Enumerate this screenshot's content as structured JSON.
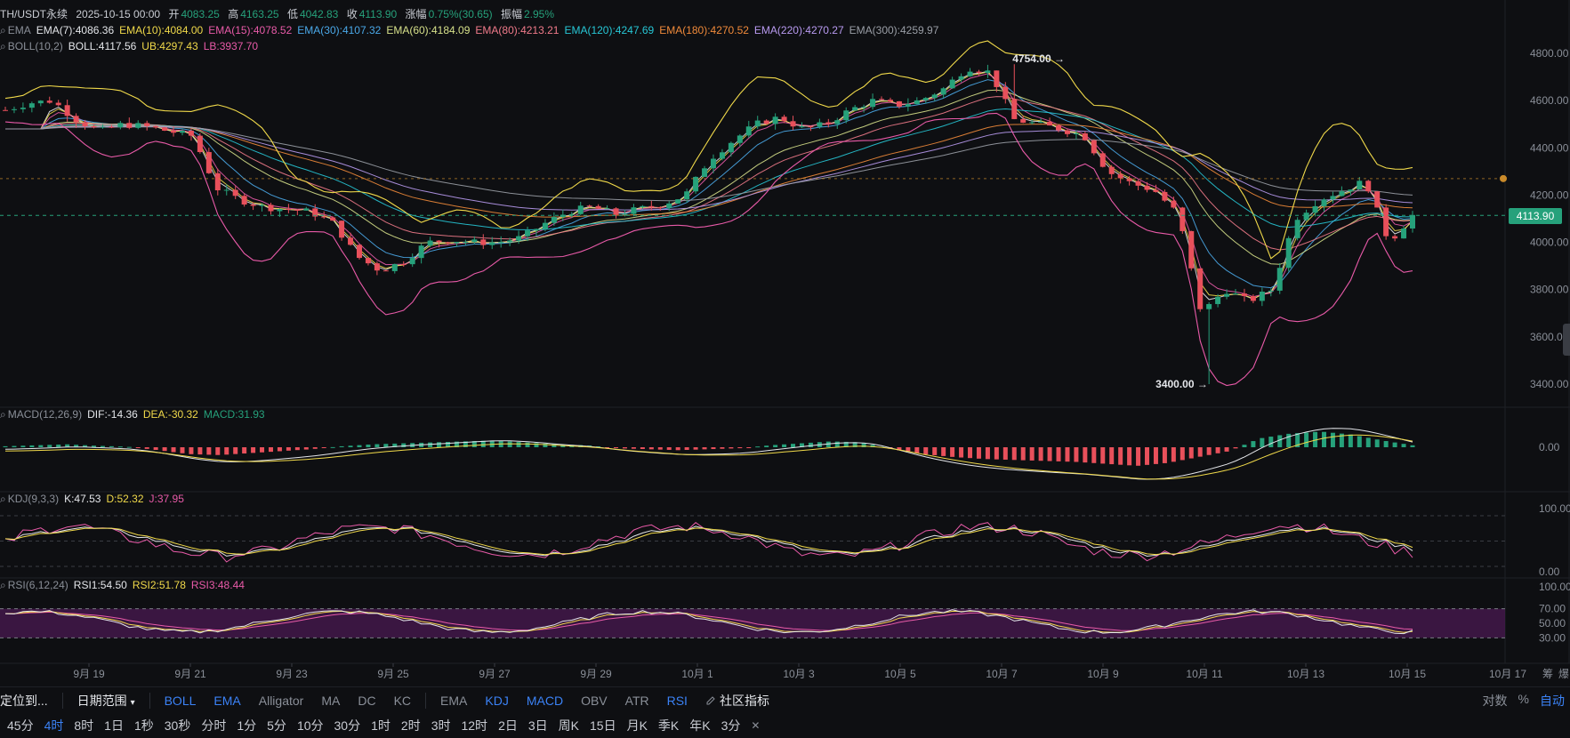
{
  "header": {
    "symbol": "TH/USDT永续",
    "datetime": "2025-10-15 00:00",
    "open_label": "开",
    "open": "4083.25",
    "high_label": "高",
    "high": "4163.25",
    "low_label": "低",
    "low": "4042.83",
    "close_label": "收",
    "close": "4113.90",
    "change_label": "涨幅",
    "change": "0.75%(30.65)",
    "amp_label": "振幅",
    "amp": "2.95%"
  },
  "ema_legend": {
    "name": "EMA",
    "items": [
      {
        "label": "EMA(7):4086.36",
        "color": "#e4e6ea"
      },
      {
        "label": "EMA(10):4084.00",
        "color": "#f0d94a"
      },
      {
        "label": "EMA(15):4078.52",
        "color": "#e85aa8"
      },
      {
        "label": "EMA(30):4107.32",
        "color": "#4aa8e8"
      },
      {
        "label": "EMA(60):4184.09",
        "color": "#d6e08a"
      },
      {
        "label": "EMA(80):4213.21",
        "color": "#f07a8a"
      },
      {
        "label": "EMA(120):4247.69",
        "color": "#27c7d6"
      },
      {
        "label": "EMA(180):4270.52",
        "color": "#f08a3a"
      },
      {
        "label": "EMA(220):4270.27",
        "color": "#b89af0"
      },
      {
        "label": "EMA(300):4259.97",
        "color": "#9a9ea6"
      }
    ]
  },
  "boll_legend": {
    "name": "BOLL(10,2)",
    "items": [
      {
        "label": "BOLL:4117.56",
        "color": "#e4e6ea"
      },
      {
        "label": "UB:4297.43",
        "color": "#f0d94a"
      },
      {
        "label": "LB:3937.70",
        "color": "#e85aa8"
      }
    ]
  },
  "macd_legend": {
    "name": "MACD(12,26,9)",
    "items": [
      {
        "label": "DIF:-14.36",
        "color": "#e4e6ea"
      },
      {
        "label": "DEA:-30.32",
        "color": "#f0d94a"
      },
      {
        "label": "MACD:31.93",
        "color": "#26a17b"
      }
    ]
  },
  "kdj_legend": {
    "name": "KDJ(9,3,3)",
    "items": [
      {
        "label": "K:47.53",
        "color": "#e4e6ea"
      },
      {
        "label": "D:52.32",
        "color": "#f0d94a"
      },
      {
        "label": "J:37.95",
        "color": "#e85aa8"
      }
    ]
  },
  "rsi_legend": {
    "name": "RSI(6,12,24)",
    "items": [
      {
        "label": "RSI1:54.50",
        "color": "#e4e6ea"
      },
      {
        "label": "RSI2:51.78",
        "color": "#f0d94a"
      },
      {
        "label": "RSI3:48.44",
        "color": "#e85aa8"
      }
    ]
  },
  "price_axis": {
    "ticks": [
      "4800.00",
      "4600.00",
      "4400.00",
      "4200.00",
      "4000.00",
      "3800.00",
      "3600.00",
      "3400.00"
    ],
    "current_price": "4113.90"
  },
  "macd_axis": {
    "ticks": [
      "0.00"
    ]
  },
  "kdj_axis": {
    "ticks": [
      "100.00",
      "0.00"
    ]
  },
  "rsi_axis": {
    "ticks": [
      "100.00",
      "70.00",
      "50.00",
      "30.00"
    ]
  },
  "annotations": {
    "high": "4754.00 →",
    "low": "3400.00 →"
  },
  "x_axis": {
    "labels": [
      "9月 19",
      "9月 21",
      "9月 23",
      "9月 25",
      "9月 27",
      "9月 29",
      "10月 1",
      "10月 3",
      "10月 5",
      "10月 7",
      "10月 9",
      "10月 11",
      "10月 13",
      "10月 15",
      "10月 17",
      "筹",
      "爆"
    ]
  },
  "toolbar": {
    "locate": "定位到...",
    "date_range": "日期范围",
    "indicators_main": [
      "BOLL",
      "EMA",
      "Alligator",
      "MA",
      "DC",
      "KC"
    ],
    "indicators_sub": [
      "EMA",
      "KDJ",
      "MACD",
      "OBV",
      "ATR",
      "RSI"
    ],
    "community": "社区指标",
    "right": [
      "对数",
      "%",
      "自动"
    ]
  },
  "timeframes": [
    "45分",
    "4时",
    "8时",
    "1日",
    "1秒",
    "30秒",
    "分时",
    "1分",
    "5分",
    "10分",
    "30分",
    "1时",
    "2时",
    "3时",
    "12时",
    "2日",
    "3日",
    "周K",
    "15日",
    "月K",
    "季K",
    "年K",
    "3分"
  ],
  "active_timeframe": "4时",
  "colors": {
    "up": "#26a17b",
    "down": "#e8505b",
    "bg": "#0e0f12",
    "accent": "#3b82f6"
  },
  "chart_data": [
    {
      "type": "candlestick",
      "title": "TH/USDT永续 4时",
      "x_dates": [
        "9月 19",
        "9月 21",
        "9月 23",
        "9月 25",
        "9月 27",
        "9月 29",
        "10月 1",
        "10月 3",
        "10月 5",
        "10月 7",
        "10月 9",
        "10月 11",
        "10月 13",
        "10月 15"
      ],
      "close_path": [
        4560,
        4590,
        4600,
        4520,
        4470,
        4500,
        4490,
        4470,
        4450,
        4230,
        4180,
        4150,
        4140,
        4130,
        4080,
        3940,
        3880,
        3920,
        4000,
        4010,
        4000,
        4000,
        4020,
        4080,
        4130,
        4150,
        4120,
        4140,
        4160,
        4200,
        4350,
        4430,
        4500,
        4530,
        4480,
        4500,
        4560,
        4600,
        4580,
        4600,
        4650,
        4740,
        4720,
        4520,
        4500,
        4480,
        4450,
        4300,
        4250,
        4220,
        4120,
        3700,
        3800,
        3750,
        3800,
        4100,
        4180,
        4220,
        4260,
        4000,
        4113.9
      ],
      "ylim": [
        3400,
        4850
      ],
      "annotations": {
        "high": 4754.0,
        "low": 3400.0
      },
      "indicator_values": {
        "EMA7": 4086.36,
        "EMA10": 4084.0,
        "EMA15": 4078.52,
        "EMA30": 4107.32,
        "EMA60": 4184.09,
        "EMA80": 4213.21,
        "EMA120": 4247.69,
        "EMA180": 4270.52,
        "EMA220": 4270.27,
        "EMA300": 4259.97,
        "BOLL": 4117.56,
        "UB": 4297.43,
        "LB": 3937.7
      }
    },
    {
      "type": "bar",
      "title": "MACD(12,26,9)",
      "series_note": "histogram",
      "values": [
        2,
        4,
        6,
        3,
        1,
        -6,
        -14,
        -16,
        -12,
        -8,
        -4,
        2,
        6,
        8,
        10,
        12,
        14,
        10,
        6,
        4,
        -2,
        -4,
        -6,
        -4,
        -2,
        4,
        8,
        12,
        10,
        -4,
        -14,
        -20,
        -24,
        -26,
        -28,
        -30,
        -34,
        -38,
        -32,
        -20,
        -8,
        18,
        28,
        32,
        26,
        14,
        4
      ],
      "ylim": [
        -60,
        60
      ],
      "indicator_values": {
        "DIF": -14.36,
        "DEA": -30.32,
        "MACD": 31.93
      }
    },
    {
      "type": "line",
      "title": "KDJ(9,3,3)",
      "ylim": [
        0,
        100
      ],
      "indicator_values": {
        "K": 47.53,
        "D": 52.32,
        "J": 37.95
      }
    },
    {
      "type": "line",
      "title": "RSI(6,12,24)",
      "ylim": [
        0,
        100
      ],
      "bands": [
        30,
        70
      ],
      "indicator_values": {
        "RSI1": 54.5,
        "RSI2": 51.78,
        "RSI3": 48.44
      }
    }
  ]
}
